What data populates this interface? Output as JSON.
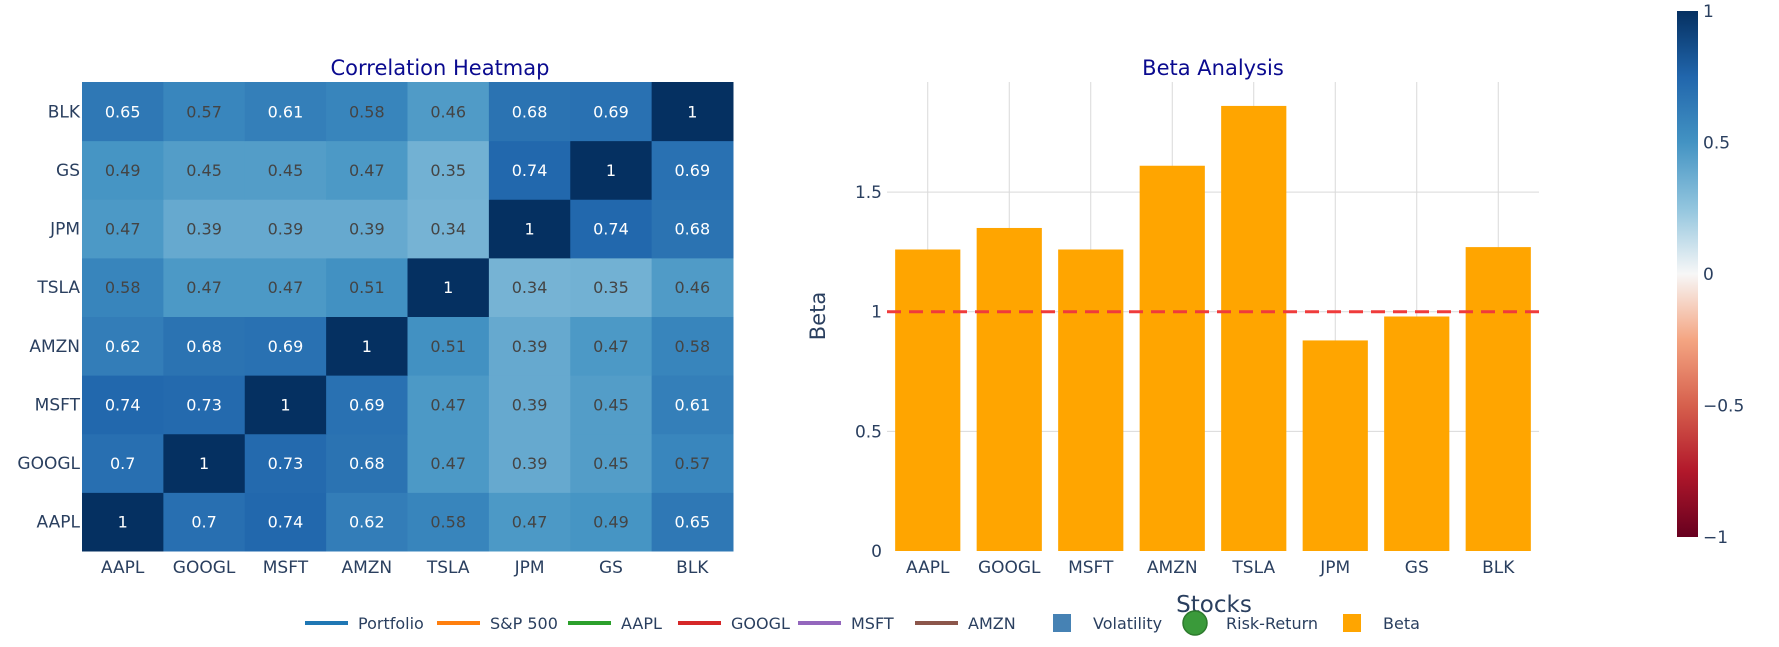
{
  "chart_data": [
    {
      "type": "heatmap",
      "title": "Correlation Heatmap",
      "x_categories": [
        "AAPL",
        "GOOGL",
        "MSFT",
        "AMZN",
        "TSLA",
        "JPM",
        "GS",
        "BLK"
      ],
      "y_categories": [
        "AAPL",
        "GOOGL",
        "MSFT",
        "AMZN",
        "TSLA",
        "JPM",
        "GS",
        "BLK"
      ],
      "z": [
        [
          1,
          0.7,
          0.74,
          0.62,
          0.58,
          0.47,
          0.49,
          0.65
        ],
        [
          0.7,
          1,
          0.73,
          0.68,
          0.47,
          0.39,
          0.45,
          0.57
        ],
        [
          0.74,
          0.73,
          1,
          0.69,
          0.47,
          0.39,
          0.45,
          0.61
        ],
        [
          0.62,
          0.68,
          0.69,
          1,
          0.51,
          0.39,
          0.47,
          0.58
        ],
        [
          0.58,
          0.47,
          0.47,
          0.51,
          1,
          0.34,
          0.35,
          0.46
        ],
        [
          0.47,
          0.39,
          0.39,
          0.39,
          0.34,
          1,
          0.74,
          0.68
        ],
        [
          0.49,
          0.45,
          0.45,
          0.47,
          0.35,
          0.74,
          1,
          0.69
        ],
        [
          0.65,
          0.57,
          0.61,
          0.58,
          0.46,
          0.68,
          0.69,
          1
        ]
      ],
      "zmin": -1,
      "zmax": 1,
      "colorscale": "RdBu",
      "colorbar_ticks": [
        "1",
        "0.5",
        "0",
        "−0.5",
        "−1"
      ]
    },
    {
      "type": "bar",
      "title": "Beta Analysis",
      "categories": [
        "AAPL",
        "GOOGL",
        "MSFT",
        "AMZN",
        "TSLA",
        "JPM",
        "GS",
        "BLK"
      ],
      "values": [
        1.26,
        1.35,
        1.26,
        1.61,
        1.86,
        0.88,
        0.98,
        1.27
      ],
      "xlabel": "Stocks",
      "ylabel": "Beta",
      "ylim": [
        0,
        1.96
      ],
      "yticks": [
        "0",
        "0.5",
        "1",
        "1.5"
      ],
      "reference_line": 1,
      "bar_color": "#FFA500",
      "reference_line_color": "#ef3b3b"
    }
  ],
  "legend": [
    {
      "name": "Portfolio",
      "symbol": "line",
      "color": "#1f77b4"
    },
    {
      "name": "S&P 500",
      "symbol": "line",
      "color": "#ff7f0e"
    },
    {
      "name": "AAPL",
      "symbol": "line",
      "color": "#2ca02c"
    },
    {
      "name": "GOOGL",
      "symbol": "line",
      "color": "#d62728"
    },
    {
      "name": "MSFT",
      "symbol": "line",
      "color": "#9467bd"
    },
    {
      "name": "AMZN",
      "symbol": "line",
      "color": "#8c564b"
    },
    {
      "name": "Volatility",
      "symbol": "square",
      "color": "#4682b4"
    },
    {
      "name": "Risk-Return",
      "symbol": "circle",
      "color": "#3a9a3a"
    },
    {
      "name": "Beta",
      "symbol": "square",
      "color": "#FFA500"
    }
  ],
  "colors": {
    "title": "#0a0a8f",
    "axis_text": "#2a3f5f",
    "grid": "#d9d9d9"
  }
}
